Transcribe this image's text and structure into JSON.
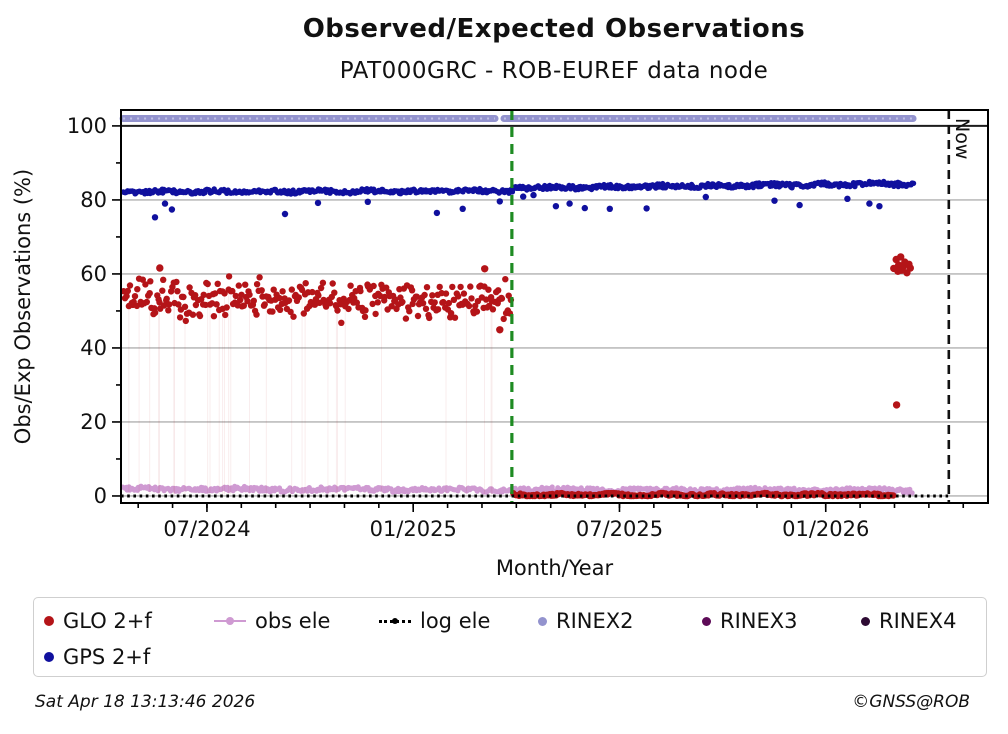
{
  "footer": {
    "timestamp": "Sat Apr 18 13:13:46 2026",
    "credit": "©GNSS@ROB"
  },
  "legend": {
    "items": [
      {
        "label": "GLO 2+f",
        "marker": "dot",
        "color": "#b41418"
      },
      {
        "label": "obs ele",
        "marker": "line-dot",
        "color": "#cf9ad2"
      },
      {
        "label": "log ele",
        "marker": "dotted-line-dot",
        "color": "#000000"
      },
      {
        "label": "RINEX2",
        "marker": "dot",
        "color": "#9393ce"
      },
      {
        "label": "RINEX3",
        "marker": "dot",
        "color": "#5d0a57"
      },
      {
        "label": "RINEX4",
        "marker": "dot",
        "color": "#2d0a33"
      },
      {
        "label": "GPS 2+f",
        "marker": "dot",
        "color": "#10109e"
      }
    ]
  },
  "chart_data": {
    "type": "scatter",
    "title": "Observed/Expected Observations",
    "subtitle": "PAT000GRC - ROB-EUREF data node",
    "xlabel": "Month/Year",
    "ylabel": "Obs/Exp Observations (%)",
    "x_unit_note": "x measured in months, 0 = 07/2024",
    "xlim": [
      -2.5,
      22.72
    ],
    "ylim": [
      -1.9,
      104.3
    ],
    "grid": true,
    "grid_color": "#b0b0b0",
    "hundred_line": {
      "y": 100,
      "color": "#1c1c1c"
    },
    "x_major_ticks": [
      {
        "pos": 0,
        "label": "07/2024"
      },
      {
        "pos": 6,
        "label": "01/2025"
      },
      {
        "pos": 12,
        "label": "07/2025"
      },
      {
        "pos": 18,
        "label": "01/2026"
      }
    ],
    "x_minor_range": [
      -2,
      22
    ],
    "y_major_ticks": [
      0,
      20,
      40,
      60,
      80,
      100
    ],
    "y_minor_ticks": [
      10,
      30,
      50,
      70,
      90
    ],
    "gridlines_y": [
      0,
      20,
      40,
      60,
      80
    ],
    "annotations": {
      "campaign_change_line": {
        "x": 8.87,
        "color": "#1e8b22",
        "style": "dashed"
      },
      "now_line": {
        "x": 21.58,
        "color": "#111111",
        "style": "dashed",
        "label": "Now"
      }
    },
    "series": [
      {
        "name": "RINEX2",
        "type": "band",
        "color": "#9393ce",
        "y": 102,
        "thickness_px": 7,
        "segments": [
          [
            -2.44,
            8.38
          ],
          [
            8.64,
            20.54
          ]
        ]
      },
      {
        "name": "obs ele",
        "type": "dense_scatter",
        "color": "#cf9ad2",
        "marker_px": 5.2,
        "runs": [
          {
            "x": [
              -2.44,
              20.5
            ],
            "mean": [
              1.9,
              1.5
            ],
            "jitter": 0.6,
            "n": 560,
            "clamp": [
              0.5,
              3.0
            ]
          }
        ],
        "outliers": []
      },
      {
        "name": "GLO 2+f",
        "type": "dense_scatter",
        "color": "#b41418",
        "marker_px": 6.4,
        "droplines": true,
        "runs": [
          {
            "x": [
              -2.42,
              8.85
            ],
            "mean": [
              53.2,
              52.9
            ],
            "jitter": 5.2,
            "n": 305,
            "clamp": [
              44.8,
              59.4
            ],
            "gauss": true
          },
          {
            "x": [
              8.9,
              19.95
            ],
            "mean": [
              0.3,
              0.3
            ],
            "jitter": 0.35,
            "n": 290,
            "clamp": [
              0,
              0.9
            ]
          }
        ],
        "outliers": [
          [
            -1.37,
            61.6
          ],
          [
            8.08,
            61.4
          ],
          [
            8.52,
            44.9
          ],
          [
            20.06,
            24.6
          ],
          [
            19.98,
            61.5
          ],
          [
            20.05,
            63.9
          ],
          [
            20.1,
            60.7
          ],
          [
            20.12,
            62.4
          ],
          [
            20.18,
            64.6
          ],
          [
            20.2,
            61.0
          ],
          [
            20.26,
            62.0
          ],
          [
            20.3,
            63.2
          ],
          [
            20.36,
            60.3
          ],
          [
            20.42,
            62.6
          ],
          [
            20.46,
            61.6
          ]
        ]
      },
      {
        "name": "GPS 2+f",
        "type": "dense_scatter",
        "color": "#10109e",
        "marker_px": 5.4,
        "runs": [
          {
            "x": [
              -2.44,
              8.87
            ],
            "mean": [
              82.2,
              82.4
            ],
            "jitter": 0.55,
            "n": 330
          },
          {
            "x": [
              8.87,
              20.54
            ],
            "mean": [
              83.2,
              84.4
            ],
            "jitter": 0.6,
            "n": 340
          }
        ],
        "outliers": [
          [
            -1.51,
            75.3
          ],
          [
            -1.22,
            79.0
          ],
          [
            -1.02,
            77.4
          ],
          [
            2.27,
            76.2
          ],
          [
            3.23,
            79.2
          ],
          [
            4.68,
            79.5
          ],
          [
            6.69,
            76.5
          ],
          [
            7.44,
            77.6
          ],
          [
            8.52,
            79.6
          ],
          [
            9.2,
            80.9
          ],
          [
            9.5,
            81.3
          ],
          [
            10.15,
            78.3
          ],
          [
            10.55,
            79.0
          ],
          [
            10.99,
            77.8
          ],
          [
            11.72,
            77.6
          ],
          [
            12.79,
            77.7
          ],
          [
            14.51,
            80.8
          ],
          [
            16.51,
            79.8
          ],
          [
            17.24,
            78.6
          ],
          [
            18.63,
            80.3
          ],
          [
            19.27,
            79.0
          ],
          [
            19.56,
            78.3
          ]
        ]
      },
      {
        "name": "log ele",
        "type": "dotted_line",
        "color": "#000000",
        "y": 0,
        "x": [
          -2.5,
          21.56
        ]
      },
      {
        "name": "RINEX3",
        "type": "none",
        "color": "#5d0a57",
        "points": []
      },
      {
        "name": "RINEX4",
        "type": "none",
        "color": "#2d0a33",
        "points": []
      }
    ]
  }
}
